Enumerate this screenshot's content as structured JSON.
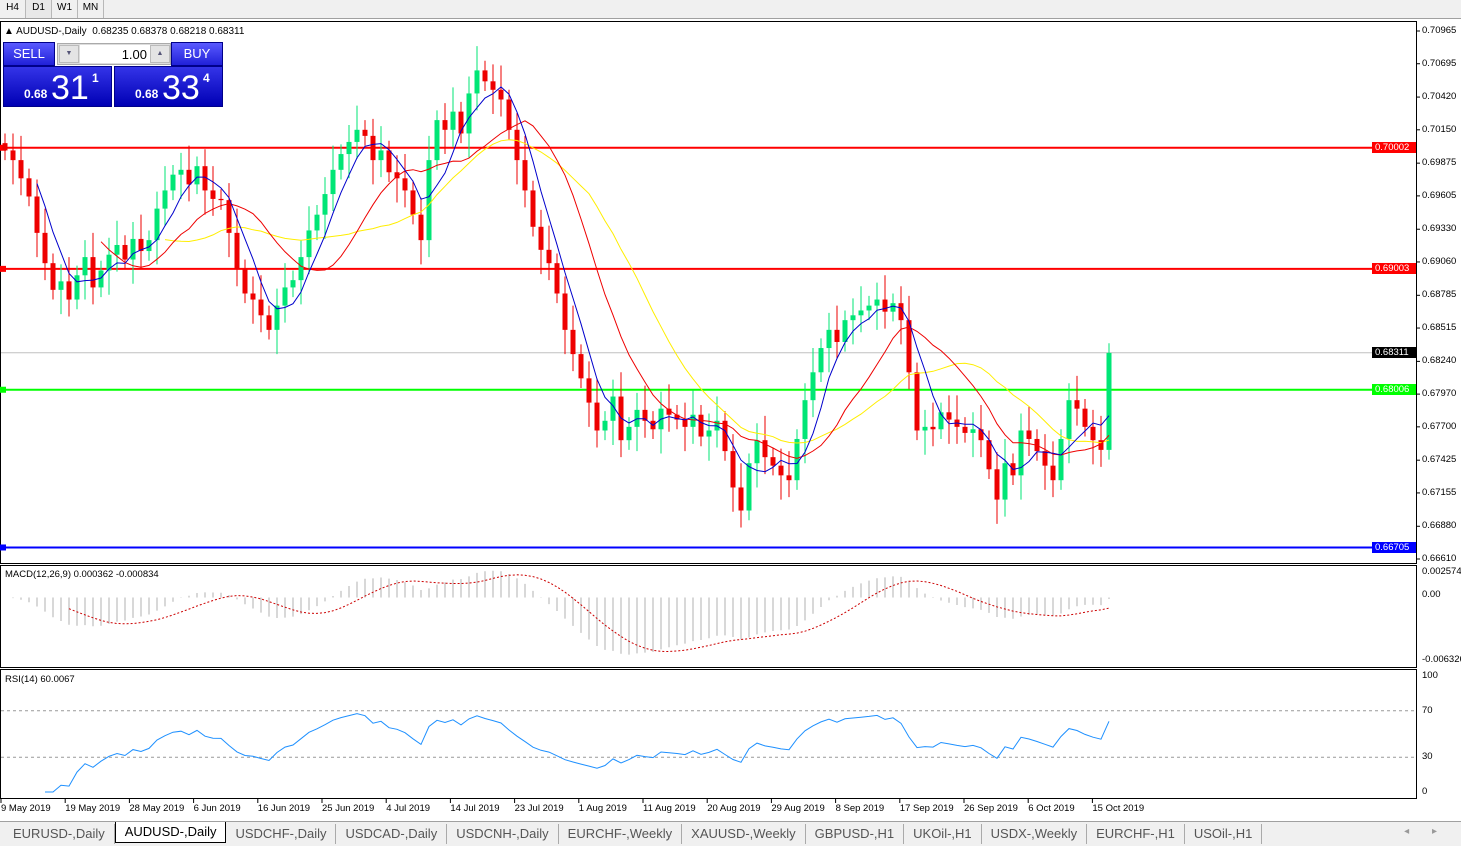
{
  "timeframes": [
    "H4",
    "D1",
    "W1",
    "MN"
  ],
  "active_timeframe": "D1",
  "chart": {
    "symbol_title": "AUDUSD-,Daily",
    "ohlc": "0.68235 0.68378 0.68218 0.68311"
  },
  "trade_panel": {
    "sell_label": "SELL",
    "buy_label": "BUY",
    "lot": "1.00",
    "sell": {
      "prefix": "0.68",
      "big": "31",
      "sup": "1"
    },
    "buy": {
      "prefix": "0.68",
      "big": "33",
      "sup": "4"
    }
  },
  "price_axis": [
    "0.70965",
    "0.70695",
    "0.70420",
    "0.70150",
    "0.69875",
    "0.69605",
    "0.69330",
    "0.69060",
    "0.68785",
    "0.68515",
    "0.68240",
    "0.67970",
    "0.67700",
    "0.67425",
    "0.67155",
    "0.66880",
    "0.66610"
  ],
  "levels": [
    {
      "price": "0.70002",
      "color": "#ff0000"
    },
    {
      "price": "0.69003",
      "color": "#ff0000"
    },
    {
      "price": "0.68006",
      "color": "#00ff00"
    },
    {
      "price": "0.66705",
      "color": "#0000ff"
    }
  ],
  "current_price": {
    "price": "0.68311",
    "color": "#000000"
  },
  "colors": {
    "bull": "#00e676",
    "bear": "#ee0000",
    "ma_fast": "#0000cc",
    "ma_mid": "#ee0000",
    "ma_slow": "#ffee00",
    "rsi": "#1e90ff",
    "macd_signal": "#cc0000"
  },
  "chart_data": {
    "type": "candlestick",
    "ylim": [
      0.6661,
      0.70965
    ],
    "closes": [
      0.6998,
      0.699,
      0.6975,
      0.696,
      0.693,
      0.6905,
      0.6883,
      0.689,
      0.6875,
      0.6895,
      0.691,
      0.6885,
      0.6899,
      0.6912,
      0.692,
      0.6908,
      0.6925,
      0.6915,
      0.6924,
      0.695,
      0.6965,
      0.6978,
      0.6982,
      0.697,
      0.6985,
      0.6965,
      0.6958,
      0.6957,
      0.693,
      0.69,
      0.688,
      0.6875,
      0.6862,
      0.685,
      0.687,
      0.6885,
      0.6891,
      0.691,
      0.6932,
      0.6945,
      0.6962,
      0.6982,
      0.6995,
      0.7005,
      0.7015,
      0.701,
      0.699,
      0.6998,
      0.698,
      0.6975,
      0.6965,
      0.6945,
      0.6924,
      0.699,
      0.7023,
      0.7015,
      0.703,
      0.7012,
      0.7045,
      0.7064,
      0.7055,
      0.7048,
      0.704,
      0.7015,
      0.699,
      0.6965,
      0.6935,
      0.6916,
      0.6905,
      0.688,
      0.685,
      0.683,
      0.681,
      0.679,
      0.6767,
      0.6775,
      0.6795,
      0.6759,
      0.677,
      0.6784,
      0.6775,
      0.6768,
      0.6785,
      0.678,
      0.6776,
      0.677,
      0.678,
      0.6762,
      0.6767,
      0.6775,
      0.675,
      0.672,
      0.6701,
      0.674,
      0.6759,
      0.6745,
      0.6738,
      0.673,
      0.6726,
      0.676,
      0.6792,
      0.6815,
      0.6835,
      0.685,
      0.684,
      0.6858,
      0.6862,
      0.6866,
      0.687,
      0.6875,
      0.6865,
      0.6872,
      0.6858,
      0.6815,
      0.6767,
      0.677,
      0.6768,
      0.6782,
      0.6776,
      0.677,
      0.6765,
      0.6768,
      0.6759,
      0.6735,
      0.671,
      0.674,
      0.673,
      0.6767,
      0.676,
      0.675,
      0.6738,
      0.6726,
      0.676,
      0.6792,
      0.6785,
      0.677,
      0.6759,
      0.6751,
      0.6831
    ]
  },
  "macd": {
    "title": "MACD(12,26,9) 0.000362 -0.000834",
    "axis": [
      "0.002574",
      "0.00",
      "-0.006326"
    ],
    "ylim": [
      -0.006326,
      0.002574
    ]
  },
  "rsi": {
    "title": "RSI(14) 60.0067",
    "axis": [
      "100",
      "70",
      "30",
      "0"
    ],
    "levels": [
      70,
      30
    ]
  },
  "dates": [
    "9 May 2019",
    "19 May 2019",
    "28 May 2019",
    "6 Jun 2019",
    "16 Jun 2019",
    "25 Jun 2019",
    "4 Jul 2019",
    "14 Jul 2019",
    "23 Jul 2019",
    "1 Aug 2019",
    "11 Aug 2019",
    "20 Aug 2019",
    "29 Aug 2019",
    "8 Sep 2019",
    "17 Sep 2019",
    "26 Sep 2019",
    "6 Oct 2019",
    "15 Oct 2019"
  ],
  "tabs": [
    "EURUSD-,Daily",
    "AUDUSD-,Daily",
    "USDCHF-,Daily",
    "USDCAD-,Daily",
    "USDCNH-,Daily",
    "EURCHF-,Weekly",
    "XAUUSD-,Weekly",
    "GBPUSD-,H1",
    "UKOil-,H1",
    "USDX-,Weekly",
    "EURCHF-,H1",
    "USOil-,H1"
  ],
  "active_tab": "AUDUSD-,Daily",
  "tab_nav": "◂ ▸"
}
